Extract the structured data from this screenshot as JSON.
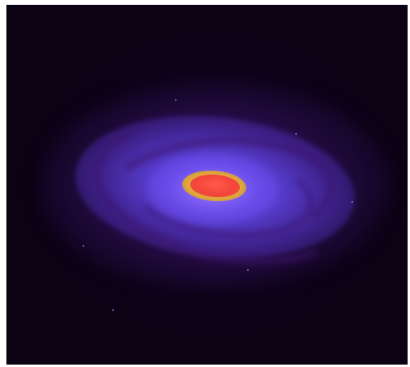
{
  "image": {
    "subject": "spiral-galaxy",
    "colors": {
      "background": "#0b0214",
      "disk": "#6a4ce6",
      "arms": "#3c146e",
      "bulge_ring": "#f0b432",
      "core": "#f4453c"
    }
  }
}
